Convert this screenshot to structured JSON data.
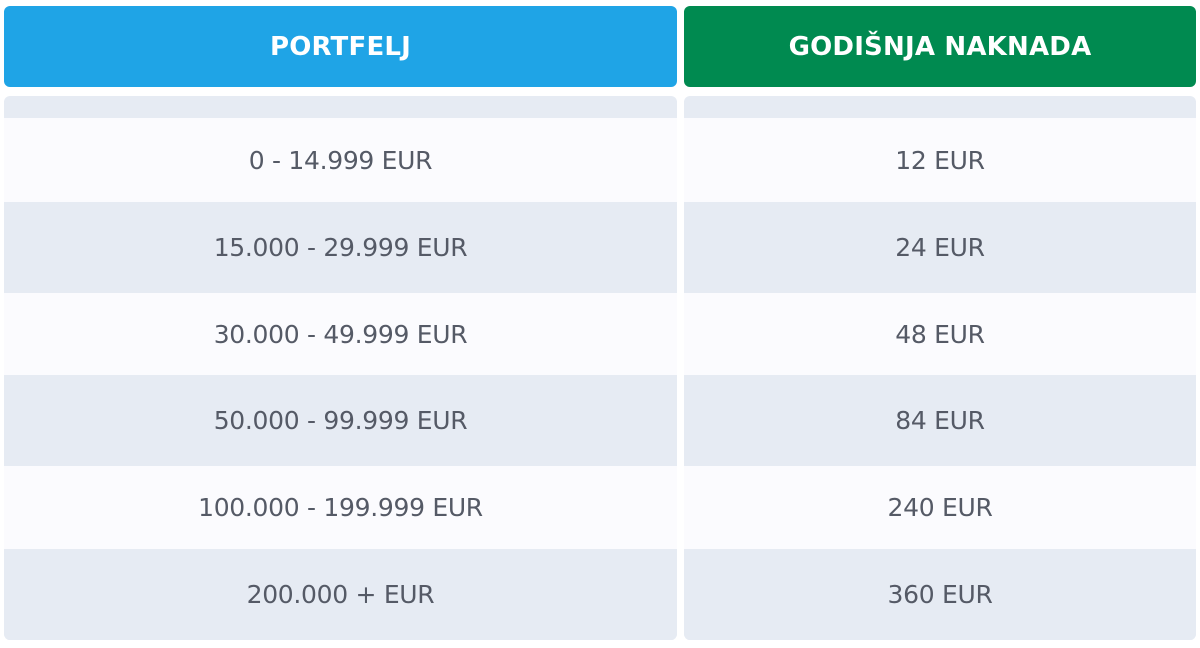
{
  "columns": {
    "portfolio": {
      "header": "PORTFELJ",
      "color": "#1fa4e6",
      "rows": [
        "0 - 14.999 EUR",
        "15.000 - 29.999 EUR",
        "30.000 - 49.999 EUR",
        "50.000 - 99.999 EUR",
        "100.000 - 199.999 EUR",
        "200.000 + EUR"
      ]
    },
    "fee": {
      "header": "GODIŠNJA NAKNADA",
      "color": "#008a50",
      "rows": [
        "12 EUR",
        "24 EUR",
        "48 EUR",
        "84 EUR",
        "240 EUR",
        "360 EUR"
      ]
    }
  }
}
